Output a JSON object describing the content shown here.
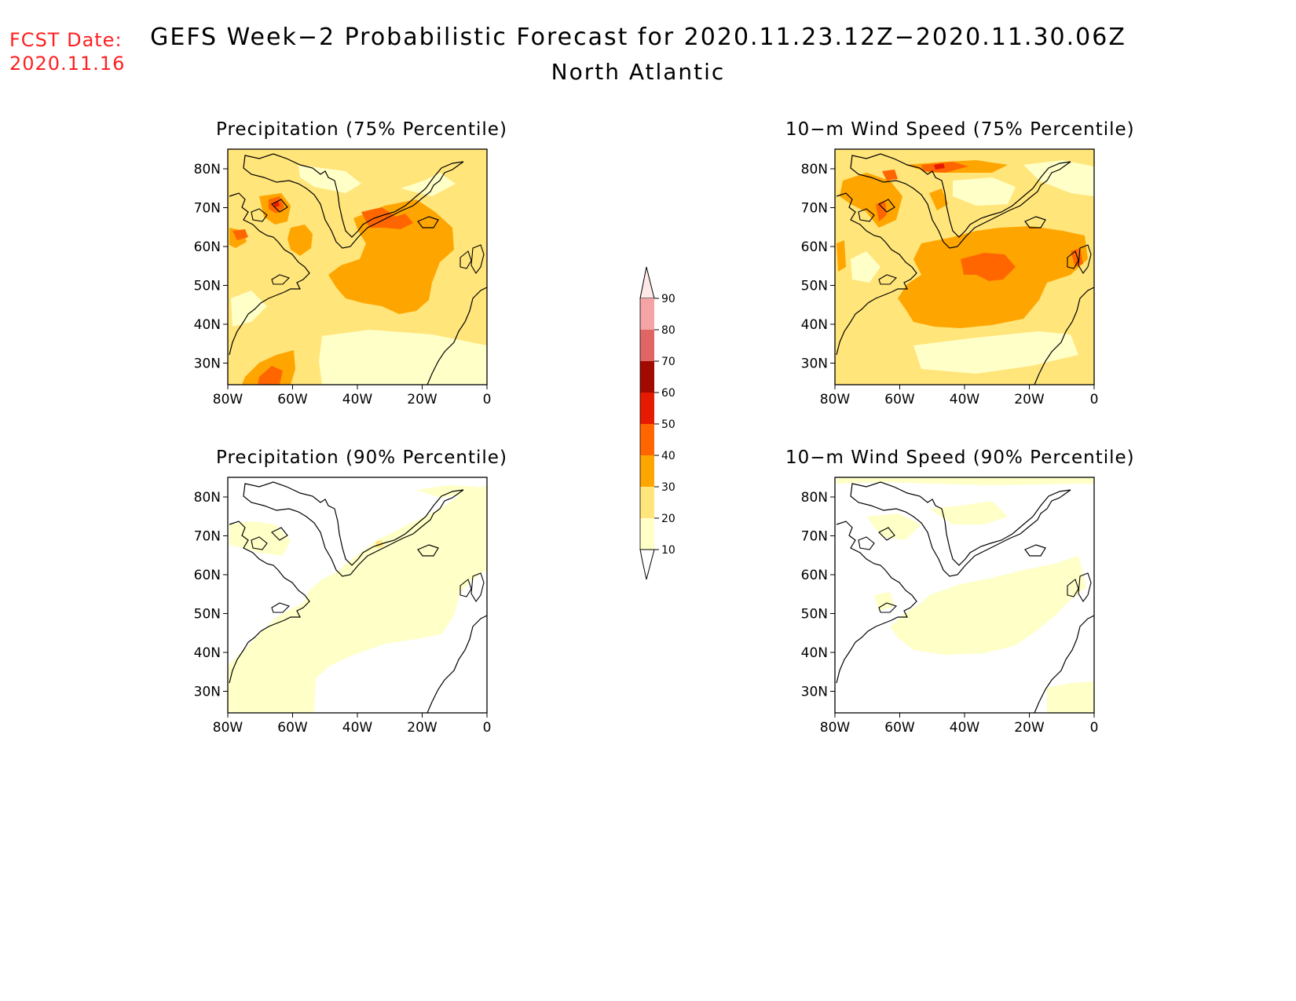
{
  "header": {
    "fcst_label": "FCST Date:",
    "fcst_date": "2020.11.16",
    "title": "GEFS Week−2 Probabilistic Forecast for 2020.11.23.12Z−2020.11.30.06Z",
    "region": "North Atlantic"
  },
  "colors": {
    "c10": "#ffffc8",
    "c20": "#ffe57a",
    "c30": "#ffa500",
    "c40": "#ff6600",
    "c50": "#e61a00",
    "c60": "#a00a00",
    "c70": "#e06666",
    "c80": "#f4a4a4",
    "c90": "#ffe0e0",
    "coast": "#000000"
  },
  "axes": {
    "lat_ticks": [
      "80N",
      "70N",
      "60N",
      "50N",
      "40N",
      "30N"
    ],
    "lon_ticks": [
      "80W",
      "60W",
      "40W",
      "20W",
      "0"
    ]
  },
  "colorbar": {
    "labels": [
      "90",
      "80",
      "70",
      "60",
      "50",
      "40",
      "30",
      "20",
      "10"
    ]
  },
  "panels": [
    {
      "id": "precip75",
      "title": "Precipitation (75% Percentile)"
    },
    {
      "id": "wind75",
      "title": "10−m Wind Speed (75% Percentile)"
    },
    {
      "id": "precip90",
      "title": "Precipitation (90% Percentile)"
    },
    {
      "id": "wind90",
      "title": "10−m Wind Speed (90% Percentile)"
    }
  ]
}
